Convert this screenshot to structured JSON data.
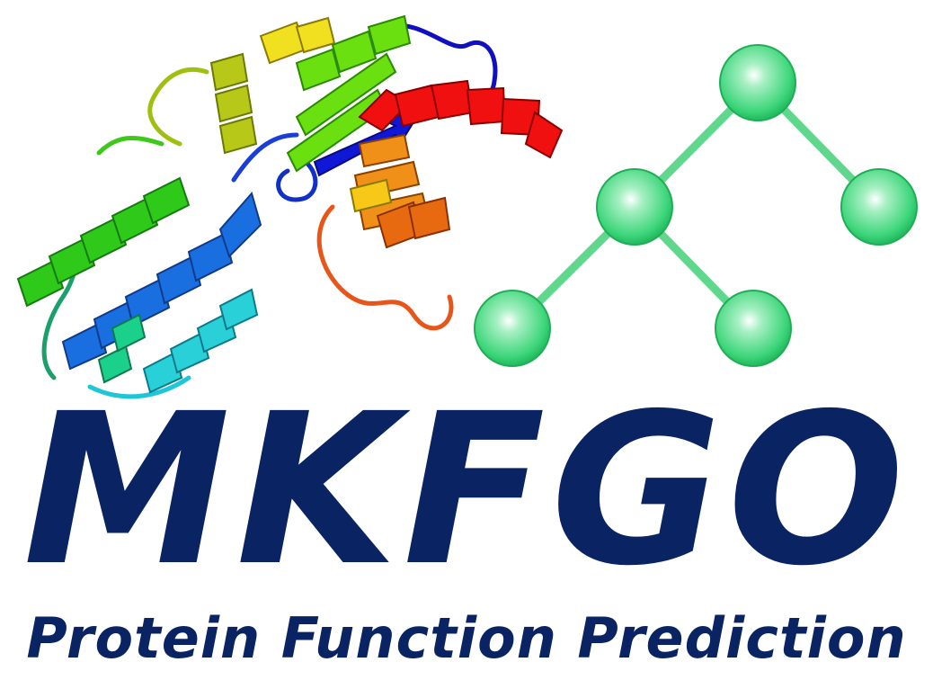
{
  "logo": {
    "title": "MKFGO",
    "subtitle": "Protein Function Prediction",
    "text_color": "#0a2463",
    "node_color": "#3dd67a",
    "edge_color": "#5fd88d"
  }
}
